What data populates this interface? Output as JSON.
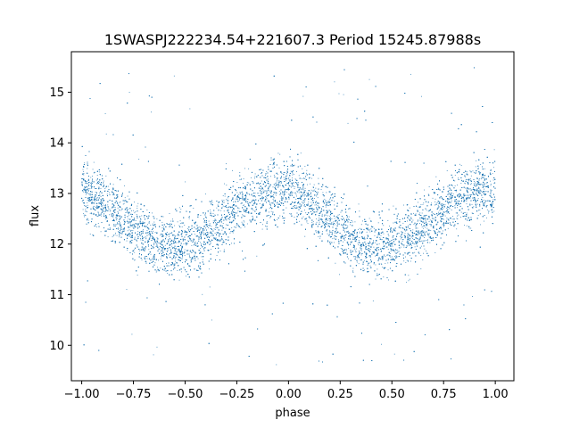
{
  "chart_data": {
    "type": "scatter",
    "title": "1SWASPJ222234.54+221607.3 Period 15245.87988s",
    "xlabel": "phase",
    "ylabel": "flux",
    "xlim": [
      -1.05,
      1.09
    ],
    "ylim": [
      9.3,
      15.8
    ],
    "xticks": [
      -1.0,
      -0.75,
      -0.5,
      -0.25,
      0.0,
      0.25,
      0.5,
      0.75,
      1.0
    ],
    "xtick_labels": [
      "−1.00",
      "−0.75",
      "−0.50",
      "−0.25",
      "0.00",
      "0.25",
      "0.50",
      "0.75",
      "1.00"
    ],
    "yticks": [
      10,
      11,
      12,
      13,
      14,
      15
    ],
    "ytick_labels": [
      "10",
      "11",
      "12",
      "13",
      "14",
      "15"
    ],
    "grid": false,
    "legend": "none",
    "marker_color": "#1f77b4",
    "series": [
      {
        "model": "flux = 12.5 + 0.55 * cos(2*pi*(phase + 0.05))",
        "x_range": [
          -1.0,
          1.0
        ],
        "mean_flux": 12.5,
        "amplitude": 0.55,
        "maxima_phase": [
          -1.0,
          -0.05,
          0.95
        ],
        "minima_phase": [
          -0.55,
          0.45
        ],
        "scatter_sigma": 0.3,
        "outlier_range": [
          9.6,
          15.5
        ]
      }
    ]
  }
}
